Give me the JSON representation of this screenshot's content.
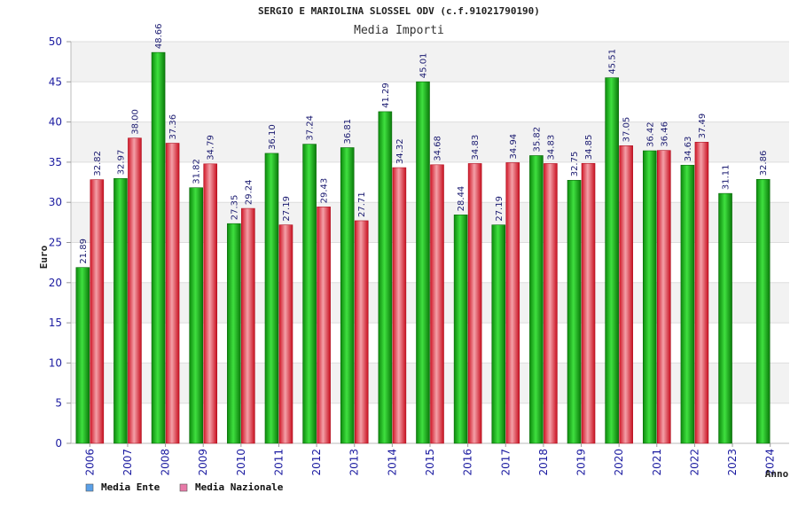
{
  "chart_data": {
    "type": "bar",
    "title": "SERGIO E MARIOLINA SLOSSEL ODV (c.f.91021790190)",
    "subtitle": "Media Importi",
    "xlabel": "Anno",
    "ylabel": "Euro",
    "ylim": [
      0,
      50
    ],
    "yticks": [
      0,
      5,
      10,
      15,
      20,
      25,
      30,
      35,
      40,
      45,
      50
    ],
    "grid": true,
    "legend_position": "bottom-left",
    "categories": [
      "2006",
      "2007",
      "2008",
      "2009",
      "2010",
      "2011",
      "2012",
      "2013",
      "2014",
      "2015",
      "2016",
      "2017",
      "2018",
      "2019",
      "2020",
      "2021",
      "2022",
      "2023",
      "2024"
    ],
    "series": [
      {
        "name": "Media Ente",
        "color": "#22b022",
        "legend_color": "#5aa0e8",
        "values": [
          21.89,
          32.97,
          48.66,
          31.82,
          27.35,
          36.1,
          37.24,
          36.81,
          41.29,
          45.01,
          28.44,
          27.19,
          35.82,
          32.75,
          45.51,
          36.42,
          34.63,
          31.11,
          32.86
        ],
        "labels": [
          "21.89",
          "32.97",
          "48.66",
          "31.82",
          "27.35",
          "36.10",
          "37.24",
          "36.81",
          "41.29",
          "45.01",
          "28.44",
          "27.19",
          "35.82",
          "32.75",
          "45.51",
          "36.42",
          "34.63",
          "31.11",
          "32.86"
        ]
      },
      {
        "name": "Media Nazionale",
        "color": "#e03040",
        "legend_color": "#e87aa8",
        "values": [
          32.82,
          38.0,
          37.36,
          34.79,
          29.24,
          27.19,
          29.43,
          27.71,
          34.32,
          34.68,
          34.83,
          34.94,
          34.83,
          34.85,
          37.05,
          36.46,
          37.49,
          null,
          null
        ],
        "labels": [
          "32.82",
          "38.00",
          "37.36",
          "34.79",
          "29.24",
          "27.19",
          "29.43",
          "27.71",
          "34.32",
          "34.68",
          "34.83",
          "34.94",
          "34.83",
          "34.85",
          "37.05",
          "36.46",
          "37.49",
          null,
          null
        ]
      }
    ]
  }
}
